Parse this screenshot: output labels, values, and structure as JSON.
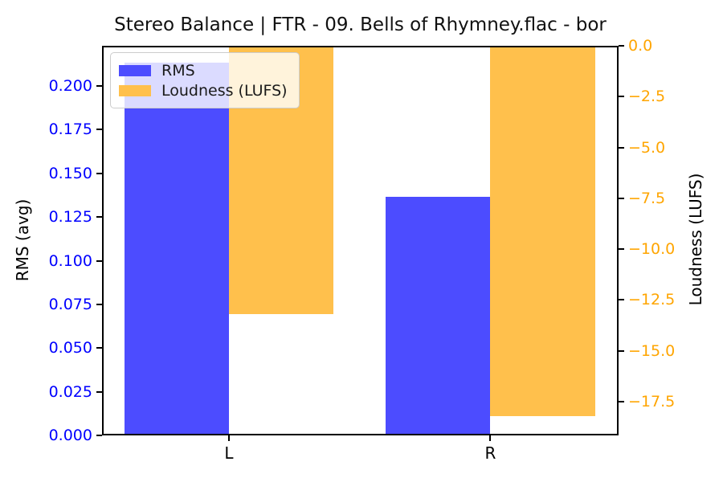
{
  "chart_data": {
    "type": "bar",
    "title": "Stereo Balance | FTR - 09. Bells of Rhymney.flac - bor",
    "categories": [
      "L",
      "R"
    ],
    "series": [
      {
        "name": "RMS",
        "axis": "left",
        "color": "#4c4cff",
        "values": [
          0.2133,
          0.1366
        ]
      },
      {
        "name": "Loudness (LUFS)",
        "axis": "right",
        "color": "#ffc04c",
        "values": [
          -13.2,
          -18.2
        ]
      }
    ],
    "left_axis": {
      "label": "RMS (avg)",
      "color": "#0000ff",
      "ylim": [
        0,
        0.223
      ],
      "ticks": [
        {
          "label": "0.000",
          "v": 0.0
        },
        {
          "label": "0.025",
          "v": 0.025
        },
        {
          "label": "0.050",
          "v": 0.05
        },
        {
          "label": "0.075",
          "v": 0.075
        },
        {
          "label": "0.100",
          "v": 0.1
        },
        {
          "label": "0.125",
          "v": 0.125
        },
        {
          "label": "0.150",
          "v": 0.15
        },
        {
          "label": "0.175",
          "v": 0.175
        },
        {
          "label": "0.200",
          "v": 0.2
        }
      ]
    },
    "right_axis": {
      "label": "Loudness (LUFS)",
      "color": "#ffa500",
      "ylim": [
        0,
        -19.16
      ],
      "ticks": [
        {
          "label": "0.0",
          "v": 0.0
        },
        {
          "label": "−2.5",
          "v": -2.5
        },
        {
          "label": "−5.0",
          "v": -5.0
        },
        {
          "label": "−7.5",
          "v": -7.5
        },
        {
          "label": "−10.0",
          "v": -10.0
        },
        {
          "label": "−12.5",
          "v": -12.5
        },
        {
          "label": "−15.0",
          "v": -15.0
        },
        {
          "label": "−17.5",
          "v": -17.5
        }
      ]
    },
    "x_axis": {
      "xlim": [
        -0.485,
        1.49
      ],
      "bar_width": 0.4,
      "ticks": [
        {
          "label": "L",
          "v": 0
        },
        {
          "label": "R",
          "v": 1
        }
      ]
    },
    "legend": {
      "location": "upper left",
      "entries": [
        {
          "label": "RMS",
          "color": "#4c4cff"
        },
        {
          "label": "Loudness (LUFS)",
          "color": "#ffc04c"
        }
      ]
    },
    "grid": false
  }
}
